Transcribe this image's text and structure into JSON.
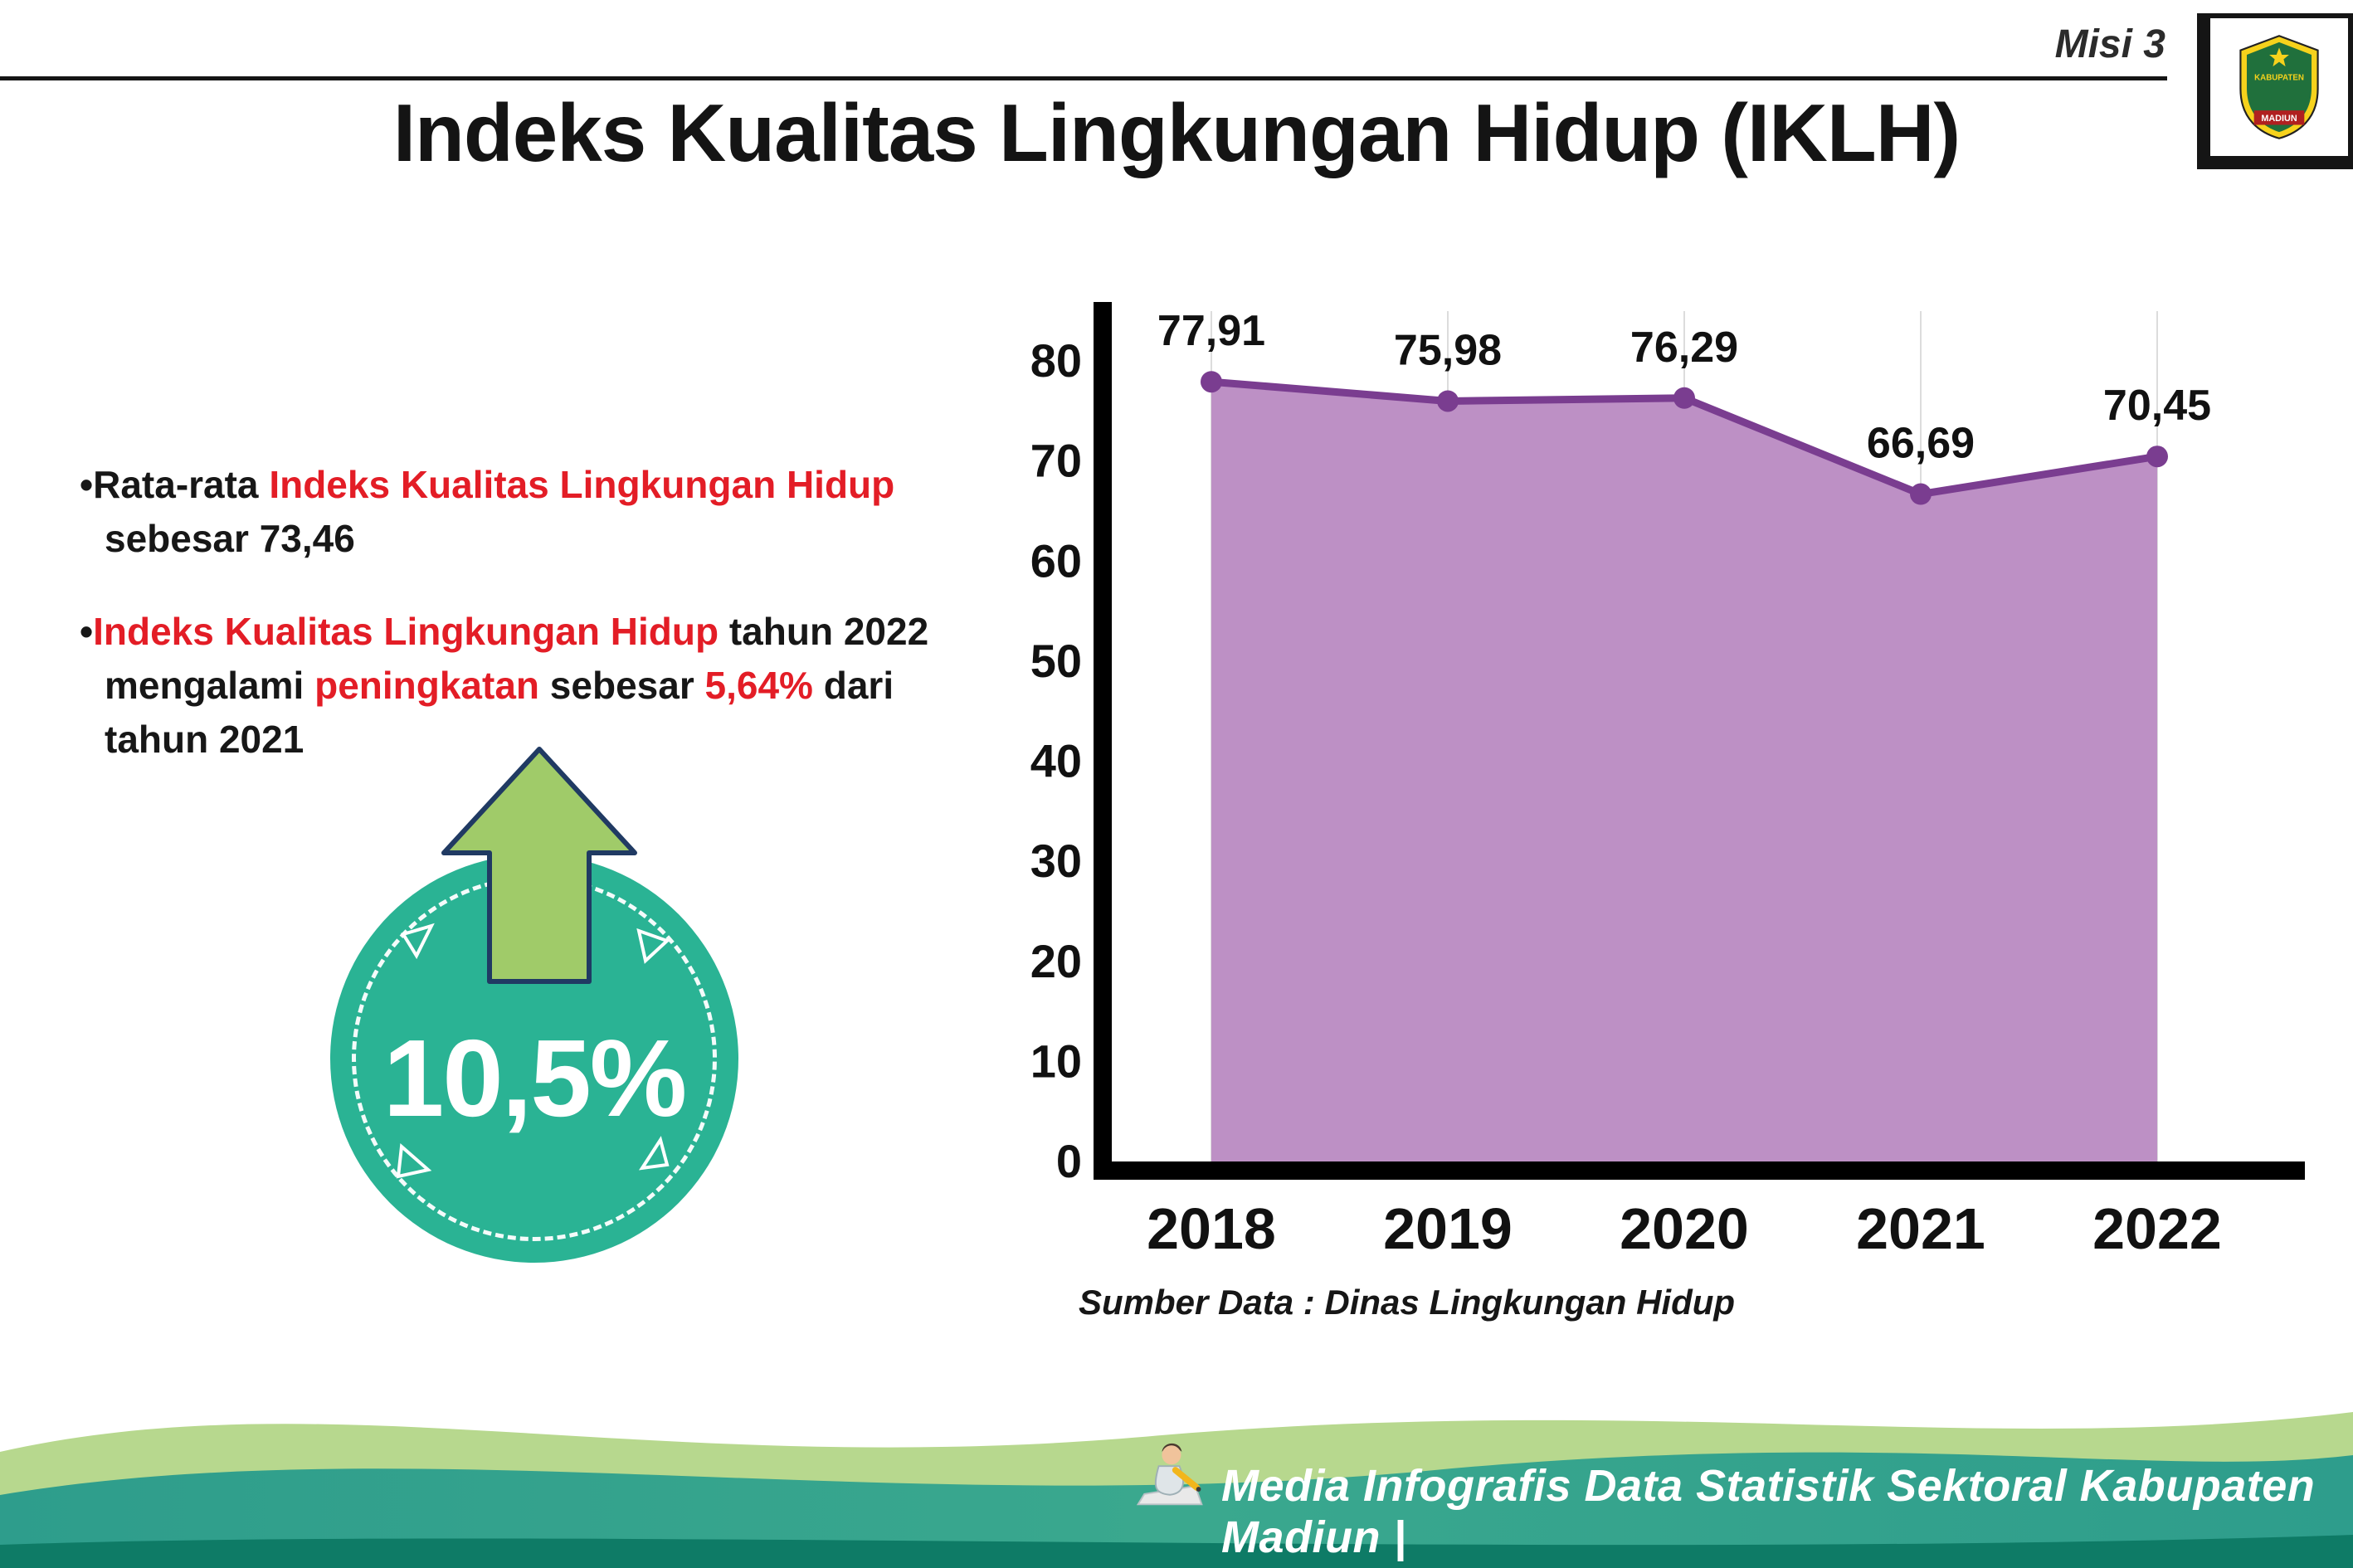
{
  "header": {
    "misi_label": "Misi 3",
    "title": "Indeks Kualitas Lingkungan Hidup (IKLH)",
    "logo": {
      "line_top": "KABUPATEN",
      "line_bottom": "MADIUN"
    }
  },
  "bullets": [
    {
      "marker": "•",
      "segments": [
        {
          "text": "Rata-rata ",
          "color": "black"
        },
        {
          "text": "Indeks Kualitas Lingkungan Hidup",
          "color": "red"
        },
        {
          "text": " sebesar 73,46",
          "color": "black"
        }
      ]
    },
    {
      "marker": "•",
      "segments": [
        {
          "text": "Indeks Kualitas Lingkungan Hidup",
          "color": "red"
        },
        {
          "text": " tahun 2022 mengalami ",
          "color": "black"
        },
        {
          "text": "peningkatan",
          "color": "red"
        },
        {
          "text": " sebesar ",
          "color": "black"
        },
        {
          "text": "5,64%",
          "color": "red"
        },
        {
          "text": " dari tahun 2021",
          "color": "black"
        }
      ]
    }
  ],
  "badge": {
    "value": "10,5%",
    "icon": "up-arrow-icon",
    "circle_color": "#2ab394",
    "arrow_color": "#a0cb69"
  },
  "chart_data": {
    "type": "area",
    "categories": [
      "2018",
      "2019",
      "2020",
      "2021",
      "2022"
    ],
    "values": [
      77.91,
      75.98,
      76.29,
      66.69,
      70.45
    ],
    "value_labels": [
      "77,91",
      "75,98",
      "76,29",
      "66,69",
      "70,45"
    ],
    "title": "",
    "xlabel": "",
    "ylabel": "",
    "ylim": [
      0,
      80
    ],
    "ytick_step": 10,
    "grid": "vertical-light",
    "legend": "none",
    "colors": {
      "area": "#bd90c5",
      "line": "#7a3d90",
      "marker": "#7a3d90",
      "axis": "#000000",
      "grid": "#dcdcdc"
    }
  },
  "source_text": "Sumber Data : Dinas Lingkungan Hidup",
  "footer": {
    "text": "Media Infografis Data Statistik Sektoral Kabupaten Madiun |",
    "colors": {
      "wave_light": "#b7d88e",
      "wave_teal": "#33a28d",
      "wave_dark": "#0e7b66"
    }
  }
}
